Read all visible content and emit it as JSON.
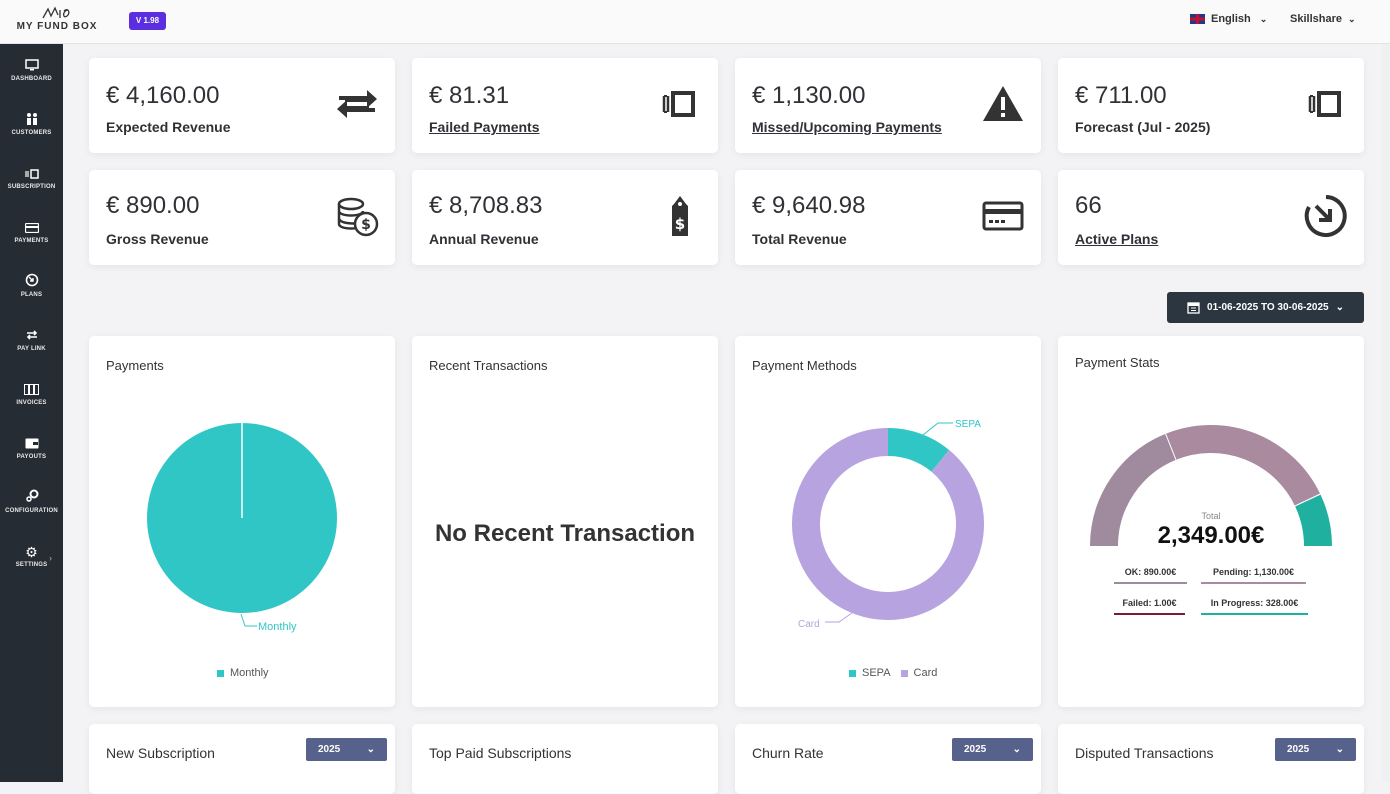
{
  "app": {
    "logo_text": "MY FUND BOX",
    "version": "V 1.98"
  },
  "header": {
    "language": "English",
    "user": "Skillshare"
  },
  "sidebar": {
    "items": [
      {
        "label": "DASHBOARD",
        "icon": "monitor-icon"
      },
      {
        "label": "CUSTOMERS",
        "icon": "users-icon"
      },
      {
        "label": "SUBSCRIPTION",
        "icon": "subscription-icon"
      },
      {
        "label": "PAYMENTS",
        "icon": "credit-card-icon"
      },
      {
        "label": "PLANS",
        "icon": "plans-icon"
      },
      {
        "label": "PAY LINK",
        "icon": "repeat-icon"
      },
      {
        "label": "INVOICES",
        "icon": "invoices-icon"
      },
      {
        "label": "PAYOUTS",
        "icon": "wallet-icon"
      },
      {
        "label": "CONFIGURATION",
        "icon": "cog-icon"
      },
      {
        "label": "SETTINGS",
        "icon": "gear-icon"
      }
    ]
  },
  "stats": [
    {
      "amount": "€ 4,160.00",
      "label": "Expected Revenue",
      "icon": "repeat-arrows-icon"
    },
    {
      "amount": "€ 81.31",
      "label": "Failed Payments",
      "icon": "subscription-icon"
    },
    {
      "amount": "€ 1,130.00",
      "label": "Missed/Upcoming Payments",
      "icon": "warning-icon"
    },
    {
      "amount": "€ 711.00",
      "label": "Forecast (Jul - 2025)",
      "icon": "subscription-icon"
    },
    {
      "amount": "€ 890.00",
      "label": "Gross Revenue",
      "icon": "coins-icon"
    },
    {
      "amount": "€ 8,708.83",
      "label": "Annual Revenue",
      "icon": "price-tag-icon"
    },
    {
      "amount": "€ 9,640.98",
      "label": "Total Revenue",
      "icon": "credit-card-icon"
    },
    {
      "amount": "66",
      "label": "Active Plans",
      "icon": "clock-arrow-icon"
    }
  ],
  "date_range": "01-06-2025 TO 30-06-2025",
  "colors": {
    "teal": "#31c6c6",
    "lavender": "#b6a3e0",
    "mauve1": "#a08a9e",
    "mauve2": "#a98a9e",
    "green": "#1fb0a0",
    "dark": "#262c34"
  },
  "panels": {
    "payments": {
      "title": "Payments",
      "slice_label": "Monthly",
      "legend": "Monthly"
    },
    "recent": {
      "title": "Recent Transactions",
      "empty": "No Recent Transaction"
    },
    "methods": {
      "title": "Payment Methods",
      "sepa": "SEPA",
      "card": "Card",
      "legend_sepa": "SEPA",
      "legend_card": "Card"
    },
    "stats": {
      "title": "Payment Stats",
      "total_label": "Total",
      "total_value": "2,349.00€",
      "ok": "OK: 890.00€",
      "pending": "Pending: 1,130.00€",
      "failed": "Failed: 1.00€",
      "in_progress": "In Progress: 328.00€"
    }
  },
  "bottom": [
    {
      "title": "New Subscription",
      "year": "2025"
    },
    {
      "title": "Top Paid Subscriptions"
    },
    {
      "title": "Churn Rate",
      "year": "2025"
    },
    {
      "title": "Disputed Transactions",
      "year": "2025"
    }
  ],
  "chart_data": [
    {
      "type": "pie",
      "title": "Payments",
      "categories": [
        "Monthly"
      ],
      "values": [
        100
      ]
    },
    {
      "type": "pie",
      "title": "Payment Methods",
      "categories": [
        "SEPA",
        "Card"
      ],
      "values": [
        11,
        89
      ]
    },
    {
      "type": "pie",
      "title": "Payment Stats",
      "categories": [
        "OK",
        "Pending",
        "Failed",
        "In Progress"
      ],
      "values": [
        890.0,
        1130.0,
        1.0,
        328.0
      ]
    }
  ]
}
